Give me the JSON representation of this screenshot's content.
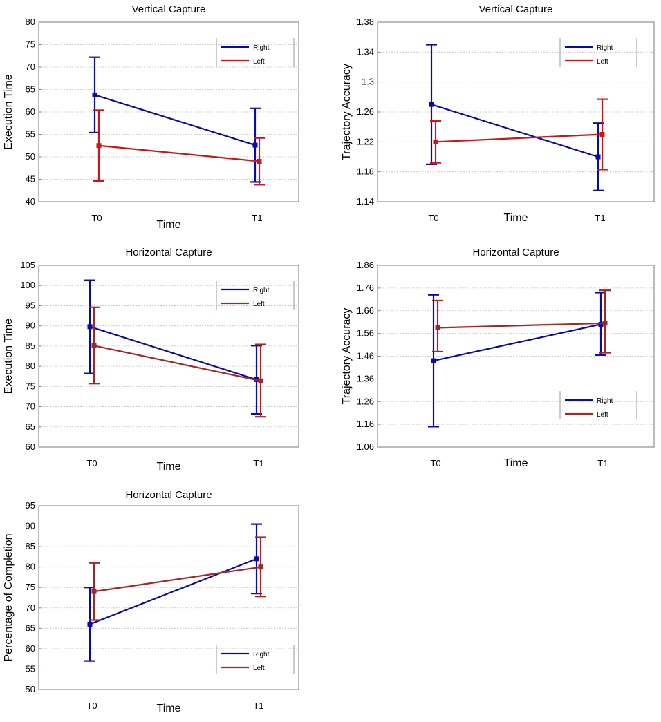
{
  "colors": {
    "right": "#0a0aa8",
    "left": "#cc1515",
    "left_dark": "#a82525",
    "grid": "#bfbfbf"
  },
  "chart_data": [
    {
      "type": "line",
      "title": "Vertical Capture",
      "xlabel": "Time",
      "ylabel": "Execution Time",
      "categories": [
        "T0",
        "T1"
      ],
      "ylim": [
        40,
        80
      ],
      "yticks": [
        "40",
        "45",
        "50",
        "55",
        "60",
        "65",
        "70",
        "75",
        "80"
      ],
      "legend_position": "top-right",
      "left_color_key": "left",
      "series": [
        {
          "name": "Right",
          "values": [
            63.8,
            52.6
          ],
          "err_low": [
            55.4,
            44.4
          ],
          "err_high": [
            72.2,
            60.8
          ]
        },
        {
          "name": "Left",
          "values": [
            52.5,
            49.0
          ],
          "err_low": [
            44.6,
            43.8
          ],
          "err_high": [
            60.4,
            54.2
          ]
        }
      ]
    },
    {
      "type": "line",
      "title": "Vertical Capture",
      "xlabel": "Time",
      "ylabel": "Trajectory Accuracy",
      "categories": [
        "T0",
        "T1"
      ],
      "ylim": [
        1.14,
        1.38
      ],
      "yticks": [
        "1.14",
        "1.18",
        "1.22",
        "1.26",
        "1.3",
        "1.34",
        "1.38"
      ],
      "legend_position": "top-right",
      "left_color_key": "left",
      "series": [
        {
          "name": "Right",
          "values": [
            1.27,
            1.2
          ],
          "err_low": [
            1.19,
            1.155
          ],
          "err_high": [
            1.35,
            1.245
          ]
        },
        {
          "name": "Left",
          "values": [
            1.22,
            1.23
          ],
          "err_low": [
            1.192,
            1.183
          ],
          "err_high": [
            1.248,
            1.277
          ]
        }
      ]
    },
    {
      "type": "line",
      "title": "Horizontal Capture",
      "xlabel": "Time",
      "ylabel": "Execution Time",
      "categories": [
        "T0",
        "T1"
      ],
      "ylim": [
        60,
        105
      ],
      "yticks": [
        "60",
        "65",
        "70",
        "75",
        "80",
        "85",
        "90",
        "95",
        "100",
        "105"
      ],
      "legend_position": "top-right",
      "left_color_key": "left_dark",
      "series": [
        {
          "name": "Right",
          "values": [
            89.8,
            76.7
          ],
          "err_low": [
            78.2,
            68.2
          ],
          "err_high": [
            101.3,
            85.1
          ]
        },
        {
          "name": "Left",
          "values": [
            85.1,
            76.4
          ],
          "err_low": [
            75.7,
            67.5
          ],
          "err_high": [
            94.6,
            85.4
          ]
        }
      ]
    },
    {
      "type": "line",
      "title": "Horizontal Capture",
      "xlabel": "Time",
      "ylabel": "Trajectory Accuracy",
      "categories": [
        "T0",
        "T1"
      ],
      "ylim": [
        1.06,
        1.86
      ],
      "yticks": [
        "1.06",
        "1.16",
        "1.26",
        "1.36",
        "1.46",
        "1.56",
        "1.66",
        "1.76",
        "1.86"
      ],
      "legend_position": "bottom-right",
      "left_color_key": "left_dark",
      "series": [
        {
          "name": "Right",
          "values": [
            1.44,
            1.6
          ],
          "err_low": [
            1.15,
            1.465
          ],
          "err_high": [
            1.73,
            1.74
          ]
        },
        {
          "name": "Left",
          "values": [
            1.585,
            1.605
          ],
          "err_low": [
            1.48,
            1.475
          ],
          "err_high": [
            1.705,
            1.75
          ]
        }
      ]
    },
    {
      "type": "line",
      "title": "Horizontal Capture",
      "xlabel": "Time",
      "ylabel": "Percentage of Completion",
      "categories": [
        "T0",
        "T1"
      ],
      "ylim": [
        50,
        95
      ],
      "yticks": [
        "50",
        "55",
        "60",
        "65",
        "70",
        "75",
        "80",
        "85",
        "90",
        "95"
      ],
      "legend_position": "bottom-right",
      "left_color_key": "left_dark",
      "series": [
        {
          "name": "Right",
          "values": [
            66.0,
            82.0
          ],
          "err_low": [
            57.0,
            73.5
          ],
          "err_high": [
            75.0,
            90.5
          ]
        },
        {
          "name": "Left",
          "values": [
            74.0,
            80.0
          ],
          "err_low": [
            67.0,
            72.8
          ],
          "err_high": [
            81.0,
            87.3
          ]
        }
      ]
    }
  ]
}
